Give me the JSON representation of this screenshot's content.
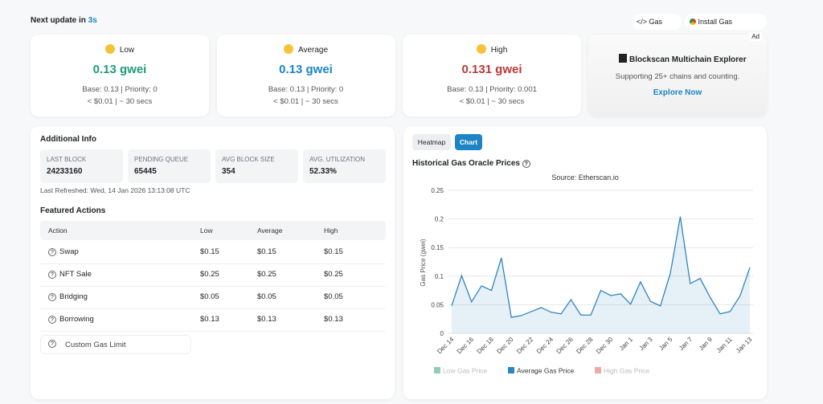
{
  "header": {
    "update_label": "Next update in",
    "countdown": "3s",
    "links": [
      "Gas APIs",
      "Install Gas Extension"
    ]
  },
  "gas_cards": [
    {
      "level": "Low",
      "price": "0.13 gwei",
      "color": "#1f9a7a",
      "details": "Base: 0.13 | Priority: 0",
      "cost": "< $0.01 | ~ 30 secs"
    },
    {
      "level": "Average",
      "price": "0.13 gwei",
      "color": "#1d84c6",
      "details": "Base: 0.13 | Priority: 0",
      "cost": "< $0.01 | ~ 30 secs"
    },
    {
      "level": "High",
      "price": "0.131 gwei",
      "color": "#b83a3a",
      "details": "Base: 0.13 | Priority: 0.001",
      "cost": "< $0.01 | ~ 30 secs"
    }
  ],
  "ad": {
    "badge": "Ad",
    "title": "Blockscan Multichain Explorer",
    "text": "Supporting 25+ chains and counting.",
    "link": "Explore Now"
  },
  "additional_info": {
    "title": "Additional Info",
    "stats": [
      {
        "label": "LAST BLOCK",
        "value": "24233160"
      },
      {
        "label": "PENDING QUEUE",
        "value": "65445"
      },
      {
        "label": "AVG BLOCK SIZE",
        "value": "354"
      },
      {
        "label": "AVG. UTILIZATION",
        "value": "52.33%"
      }
    ],
    "last_refreshed": "Last Refreshed: Wed, 14 Jan 2026 13:13:08 UTC"
  },
  "featured_actions": {
    "title": "Featured Actions",
    "columns": [
      "Action",
      "Low",
      "Average",
      "High"
    ],
    "rows": [
      [
        "Swap",
        "$0.15",
        "$0.15",
        "$0.15"
      ],
      [
        "NFT Sale",
        "$0.25",
        "$0.25",
        "$0.25"
      ],
      [
        "Bridging",
        "$0.05",
        "$0.05",
        "$0.05"
      ],
      [
        "Borrowing",
        "$0.13",
        "$0.13",
        "$0.13"
      ]
    ],
    "custom_gas_limit": "Custom Gas Limit"
  },
  "tabs": [
    "Heatmap",
    "Chart"
  ],
  "chart_data": {
    "type": "line",
    "title": "Historical Gas Oracle Prices",
    "subtitle": "Source: Etherscan.io",
    "y_label": "Gas Price (gwei)",
    "categories": [
      "Dec 14",
      null,
      "Dec 16",
      null,
      "Dec 18",
      null,
      "Dec 20",
      null,
      "Dec 22",
      null,
      "Dec 24",
      null,
      "Dec 26",
      null,
      "Dec 28",
      null,
      "Dec 30",
      null,
      "Jan 1",
      null,
      "Jan 3",
      null,
      "Jan 5",
      null,
      "Jan 7",
      null,
      "Jan 9",
      null,
      "Jan 11",
      null,
      "Jan 13"
    ],
    "series": [
      {
        "name": "Low Gas Price",
        "color": "#1f9a7a",
        "visible": false
      },
      {
        "name": "Average Gas Price",
        "color": "#2e86c1",
        "visible": true,
        "values": [
          0.048,
          0.101,
          0.055,
          0.083,
          0.075,
          0.132,
          0.028,
          0.031,
          0.038,
          0.045,
          0.037,
          0.034,
          0.059,
          0.032,
          0.032,
          0.075,
          0.066,
          0.069,
          0.051,
          0.09,
          0.056,
          0.048,
          0.105,
          0.204,
          0.087,
          0.096,
          0.063,
          0.034,
          0.038,
          0.065,
          0.115
        ]
      },
      {
        "name": "High Gas Price",
        "color": "#d9534f",
        "visible": false
      }
    ],
    "ylim": [
      0,
      0.25
    ],
    "yticks": [
      0,
      0.05,
      0.1,
      0.15,
      0.2,
      0.25
    ],
    "grid": true
  }
}
